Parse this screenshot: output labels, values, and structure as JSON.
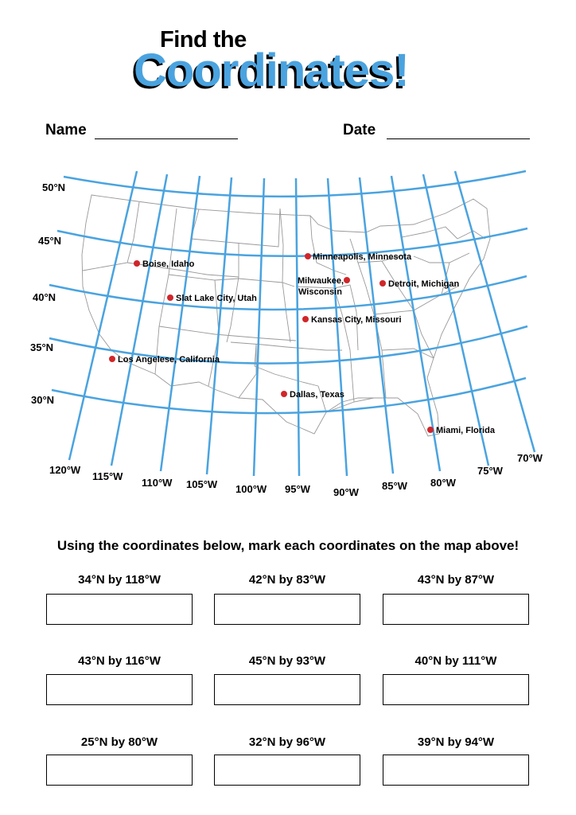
{
  "title": {
    "line1": "Find the",
    "line2": "Coordinates!"
  },
  "fields": {
    "name_label": "Name",
    "date_label": "Date"
  },
  "map": {
    "lat_labels": [
      "50°N",
      "45°N",
      "40°N",
      "35°N",
      "30°N"
    ],
    "lon_labels": [
      "120°W",
      "115°W",
      "110°W",
      "105°W",
      "100°W",
      "95°W",
      "90°W",
      "85°W",
      "80°W",
      "75°W",
      "70°W"
    ],
    "cities": [
      {
        "name": "Boise, Idaho"
      },
      {
        "name": "Slat Lake City, Utah"
      },
      {
        "name": "Los Angelese, California"
      },
      {
        "name": "Minneapolis, Minnesota"
      },
      {
        "name": "Milwaukee,",
        "name2": "Wisconsin"
      },
      {
        "name": "Detroit, Michigan"
      },
      {
        "name": "Kansas City, Missouri"
      },
      {
        "name": "Dallas, Texas"
      },
      {
        "name": "Miami, Florida"
      }
    ],
    "grid_color": "#4aa3df",
    "dot_color": "#d0262a"
  },
  "instruction": "Using the coordinates below, mark each coordinates on the map above!",
  "exercises": [
    "34°N by 118°W",
    "42°N by 83°W",
    "43°N by 87°W",
    "43°N by 116°W",
    "45°N by 93°W",
    "40°N by 111°W",
    "25°N by 80°W",
    "32°N by 96°W",
    "39°N by 94°W"
  ]
}
